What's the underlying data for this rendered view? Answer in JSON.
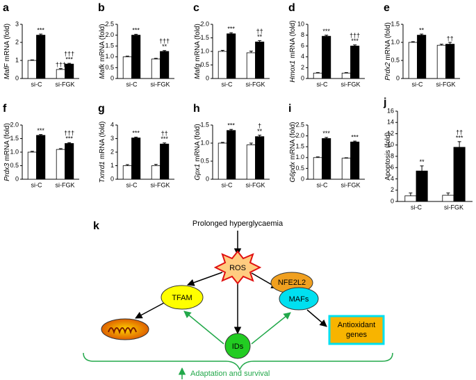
{
  "chart_data": [
    {
      "type": "bar",
      "label": "a",
      "gene": "MafF",
      "ylabel": "mRNA (fold)",
      "categories": [
        "si-C",
        "si-FGK"
      ],
      "ylim": [
        0,
        3
      ],
      "yticks": [
        0,
        1,
        2,
        3
      ],
      "series": [
        {
          "color": "#ffffff",
          "values": [
            1.0,
            0.5
          ],
          "errors": [
            0.03,
            0.05
          ],
          "marks": [
            null,
            [
              "†††"
            ]
          ]
        },
        {
          "color": "#000000",
          "values": [
            2.4,
            0.8
          ],
          "errors": [
            0.06,
            0.04
          ],
          "marks": [
            [
              "***"
            ],
            [
              "†††",
              "***"
            ]
          ]
        }
      ]
    },
    {
      "type": "bar",
      "label": "b",
      "gene": "Mafk",
      "ylabel": "mRNA (fold)",
      "categories": [
        "si-C",
        "si-FGK"
      ],
      "ylim": [
        0,
        2.5
      ],
      "yticks": [
        0,
        0.5,
        {
          "value": 1,
          "label": "1.0"
        },
        1.5,
        {
          "value": 2,
          "label": "2.0"
        },
        2.5
      ],
      "series": [
        {
          "color": "#ffffff",
          "values": [
            1.0,
            0.9
          ],
          "errors": [
            0.03,
            0.03
          ],
          "marks": [
            null,
            null
          ]
        },
        {
          "color": "#000000",
          "values": [
            2.0,
            1.25
          ],
          "errors": [
            0.04,
            0.04
          ],
          "marks": [
            [
              "***"
            ],
            [
              "†††",
              "**"
            ]
          ]
        }
      ]
    },
    {
      "type": "bar",
      "label": "c",
      "gene": "Mafg",
      "ylabel": "mRNA (fold)",
      "categories": [
        "si-C",
        "si-FGK"
      ],
      "ylim": [
        0,
        2
      ],
      "yticks": [
        0,
        0.5,
        {
          "value": 1,
          "label": "1.0"
        },
        1.5,
        {
          "value": 2,
          "label": "2.0"
        }
      ],
      "series": [
        {
          "color": "#ffffff",
          "values": [
            1.0,
            0.95
          ],
          "errors": [
            0.04,
            0.06
          ],
          "marks": [
            null,
            null
          ]
        },
        {
          "color": "#000000",
          "values": [
            1.65,
            1.35
          ],
          "errors": [
            0.04,
            0.05
          ],
          "marks": [
            [
              "***"
            ],
            [
              "††",
              "**"
            ]
          ]
        }
      ]
    },
    {
      "type": "bar",
      "label": "d",
      "gene": "Hmox1",
      "ylabel": "mRNA (fold)",
      "categories": [
        "si-C",
        "si-FGK"
      ],
      "ylim": [
        0,
        10
      ],
      "yticks": [
        0,
        2,
        4,
        6,
        8,
        10
      ],
      "series": [
        {
          "color": "#ffffff",
          "values": [
            1.0,
            1.0
          ],
          "errors": [
            0.1,
            0.1
          ],
          "marks": [
            null,
            null
          ]
        },
        {
          "color": "#000000",
          "values": [
            7.8,
            6.0
          ],
          "errors": [
            0.2,
            0.2
          ],
          "marks": [
            [
              "***"
            ],
            [
              "†††",
              "***"
            ]
          ]
        }
      ]
    },
    {
      "type": "bar",
      "label": "e",
      "gene": "Prdx2",
      "ylabel": "mRNA (fold)",
      "categories": [
        "si-C",
        "si-FGK"
      ],
      "ylim": [
        0,
        1.5
      ],
      "yticks": [
        0,
        0.5,
        {
          "value": 1,
          "label": "1.0"
        },
        1.5
      ],
      "series": [
        {
          "color": "#ffffff",
          "values": [
            1.0,
            0.92
          ],
          "errors": [
            0.02,
            0.03
          ],
          "marks": [
            null,
            null
          ]
        },
        {
          "color": "#000000",
          "values": [
            1.2,
            0.95
          ],
          "errors": [
            0.03,
            0.05
          ],
          "marks": [
            [
              "**"
            ],
            [
              "††"
            ]
          ]
        }
      ]
    },
    {
      "type": "bar",
      "label": "f",
      "gene": "Prdx3",
      "ylabel": "mRNA (fold)",
      "categories": [
        "si-C",
        "si-FGK"
      ],
      "ylim": [
        0,
        2
      ],
      "yticks": [
        0,
        0.5,
        {
          "value": 1,
          "label": "1.0"
        },
        1.5,
        {
          "value": 2,
          "label": "2.0"
        }
      ],
      "series": [
        {
          "color": "#ffffff",
          "values": [
            1.0,
            1.1
          ],
          "errors": [
            0.03,
            0.03
          ],
          "marks": [
            null,
            null
          ]
        },
        {
          "color": "#000000",
          "values": [
            1.62,
            1.32
          ],
          "errors": [
            0.03,
            0.03
          ],
          "marks": [
            [
              "***"
            ],
            [
              "†††",
              "***"
            ]
          ]
        }
      ]
    },
    {
      "type": "bar",
      "label": "g",
      "gene": "Txnrd1",
      "ylabel": "mRNA (fold)",
      "categories": [
        "si-C",
        "si-FGK"
      ],
      "ylim": [
        0,
        4
      ],
      "yticks": [
        0,
        1,
        2,
        3,
        4
      ],
      "series": [
        {
          "color": "#ffffff",
          "values": [
            1.0,
            1.0
          ],
          "errors": [
            0.08,
            0.1
          ],
          "marks": [
            null,
            null
          ]
        },
        {
          "color": "#000000",
          "values": [
            3.05,
            2.6
          ],
          "errors": [
            0.06,
            0.08
          ],
          "marks": [
            [
              "***"
            ],
            [
              "††",
              "***"
            ]
          ]
        }
      ]
    },
    {
      "type": "bar",
      "label": "h",
      "gene": "Gpx1",
      "ylabel": "mRNA (fold)",
      "categories": [
        "si-C",
        "si-FGK"
      ],
      "ylim": [
        0,
        1.5
      ],
      "yticks": [
        0,
        0.5,
        {
          "value": 1,
          "label": "1.0"
        },
        1.5
      ],
      "series": [
        {
          "color": "#ffffff",
          "values": [
            1.0,
            0.95
          ],
          "errors": [
            0.02,
            0.05
          ],
          "marks": [
            null,
            null
          ]
        },
        {
          "color": "#000000",
          "values": [
            1.35,
            1.18
          ],
          "errors": [
            0.03,
            0.04
          ],
          "marks": [
            [
              "***"
            ],
            [
              "†",
              "**"
            ]
          ]
        }
      ]
    },
    {
      "type": "bar",
      "label": "i",
      "gene": "G6pdx",
      "ylabel": "mRNA (fold)",
      "categories": [
        "si-C",
        "si-FGK"
      ],
      "ylim": [
        0,
        2.5
      ],
      "yticks": [
        0,
        0.5,
        {
          "value": 1,
          "label": "1.0"
        },
        1.5,
        {
          "value": 2,
          "label": "2.0"
        },
        2.5
      ],
      "series": [
        {
          "color": "#ffffff",
          "values": [
            1.0,
            0.97
          ],
          "errors": [
            0.03,
            0.02
          ],
          "marks": [
            null,
            null
          ]
        },
        {
          "color": "#000000",
          "values": [
            1.88,
            1.72
          ],
          "errors": [
            0.05,
            0.04
          ],
          "marks": [
            [
              "***"
            ],
            [
              "***"
            ]
          ]
        }
      ]
    },
    {
      "type": "bar",
      "label": "j",
      "ylabel": "Apoptosis (fold)",
      "categories": [
        "si-C",
        "si-FGK"
      ],
      "ylim": [
        0,
        16
      ],
      "yticks": [
        0,
        2,
        4,
        6,
        8,
        10,
        12,
        14,
        16
      ],
      "series": [
        {
          "color": "#ffffff",
          "values": [
            1.0,
            1.1
          ],
          "errors": [
            0.5,
            0.4
          ],
          "marks": [
            null,
            null
          ]
        },
        {
          "color": "#000000",
          "values": [
            5.4,
            9.6
          ],
          "errors": [
            0.9,
            1.0
          ],
          "marks": [
            [
              "**"
            ],
            [
              "††",
              "***"
            ]
          ]
        }
      ]
    }
  ],
  "diagram": {
    "label": "k",
    "top": "Prolonged hyperglycaemia",
    "ros": "ROS",
    "tfam": "TFAM",
    "nfe2l2": "NFE2L2",
    "mafs": "MAFs",
    "antioxidant": [
      "Antioxidant",
      "genes"
    ],
    "ids": "IDs",
    "footer": "Adaptation and survival"
  }
}
